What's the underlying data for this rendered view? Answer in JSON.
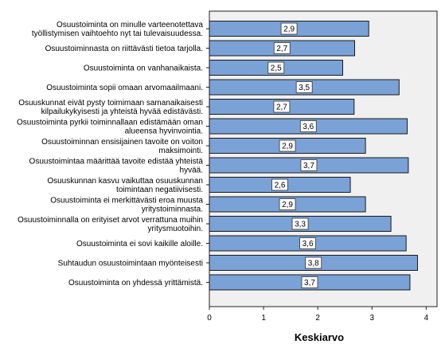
{
  "chart_data": {
    "type": "bar",
    "orientation": "horizontal",
    "xlabel": "Keskiarvo",
    "ylabel": "",
    "xlim": [
      0,
      4.2
    ],
    "xticks": [
      0,
      1,
      2,
      3,
      4
    ],
    "grid": false,
    "bar_color": "#7aa2d6",
    "bar_edge_color": "#1a1a1a",
    "plot_background": "#f0f0f0",
    "categories": [
      [
        "Osuustoiminta on minulle varteenotettava",
        "työllistymisen vaihtoehto nyt tai tulevaisuudessa."
      ],
      [
        "Osuustoiminnasta on riittävästi tietoa tarjolla."
      ],
      [
        "Osuustoiminta on vanhanaikaista."
      ],
      [
        "Osuustoiminta sopii omaan arvomaailmaani."
      ],
      [
        "Osuuskunnat eivät pysty toimimaan samanaikaisesti",
        "kilpailukykyisesti ja yhteistä hyvää edistävästi."
      ],
      [
        "Osuustoiminta pyrkii toiminnallaan edistämään oman",
        "alueensa hyvinvointia."
      ],
      [
        "Osuustoiminnan ensisijainen tavoite on voiton",
        "maksimointi."
      ],
      [
        "Osuustoimintaa määrittää tavoite edistää yhteistä",
        "hyvää."
      ],
      [
        "Osuuskunnan kasvu vaikuttaa osuuskunnan",
        "toimintaan negatiivisesti."
      ],
      [
        "Osuustoiminta ei merkittävästi eroa muusta",
        "yritystoiminnasta."
      ],
      [
        "Osuustoiminnalla on erityiset arvot verrattuna muihin",
        "yritysmuotoihin."
      ],
      [
        "Osuustoiminta ei sovi kaikille aloille."
      ],
      [
        "Suhtaudun osuustoimintaan myönteisesti"
      ],
      [
        "Osuustoiminta on yhdessä yrittämistä."
      ]
    ],
    "values": [
      2.94,
      2.68,
      2.46,
      3.5,
      2.67,
      3.65,
      2.88,
      3.67,
      2.6,
      2.88,
      3.35,
      3.63,
      3.84,
      3.7
    ],
    "value_labels": [
      "2,9",
      "2,7",
      "2,5",
      "3,5",
      "2,7",
      "3,6",
      "2,9",
      "3,7",
      "2,6",
      "2,9",
      "3,3",
      "3,6",
      "3,8",
      "3,7"
    ]
  }
}
